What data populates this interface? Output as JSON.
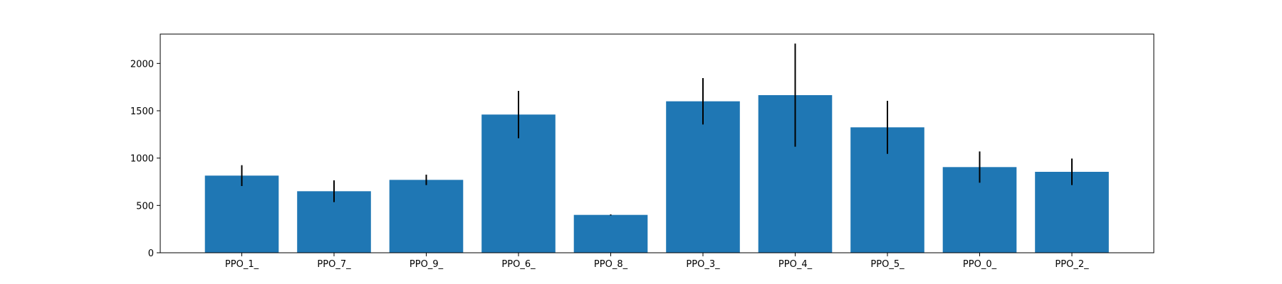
{
  "chart_data": {
    "type": "bar",
    "categories": [
      "PPO_1_",
      "PPO_7_",
      "PPO_9_",
      "PPO_6_",
      "PPO_8_",
      "PPO_3_",
      "PPO_4_",
      "PPO_5_",
      "PPO_0_",
      "PPO_2_"
    ],
    "values": [
      815,
      650,
      770,
      1460,
      400,
      1600,
      1665,
      1325,
      905,
      855
    ],
    "error": [
      110,
      115,
      55,
      250,
      5,
      245,
      545,
      280,
      165,
      140
    ],
    "title": "",
    "xlabel": "",
    "ylabel": "",
    "ylim": [
      0,
      2310
    ],
    "yticks": [
      0,
      500,
      1000,
      1500,
      2000
    ],
    "grid": false,
    "colors": {
      "bar": "#1f77b4",
      "error": "#000000"
    }
  }
}
